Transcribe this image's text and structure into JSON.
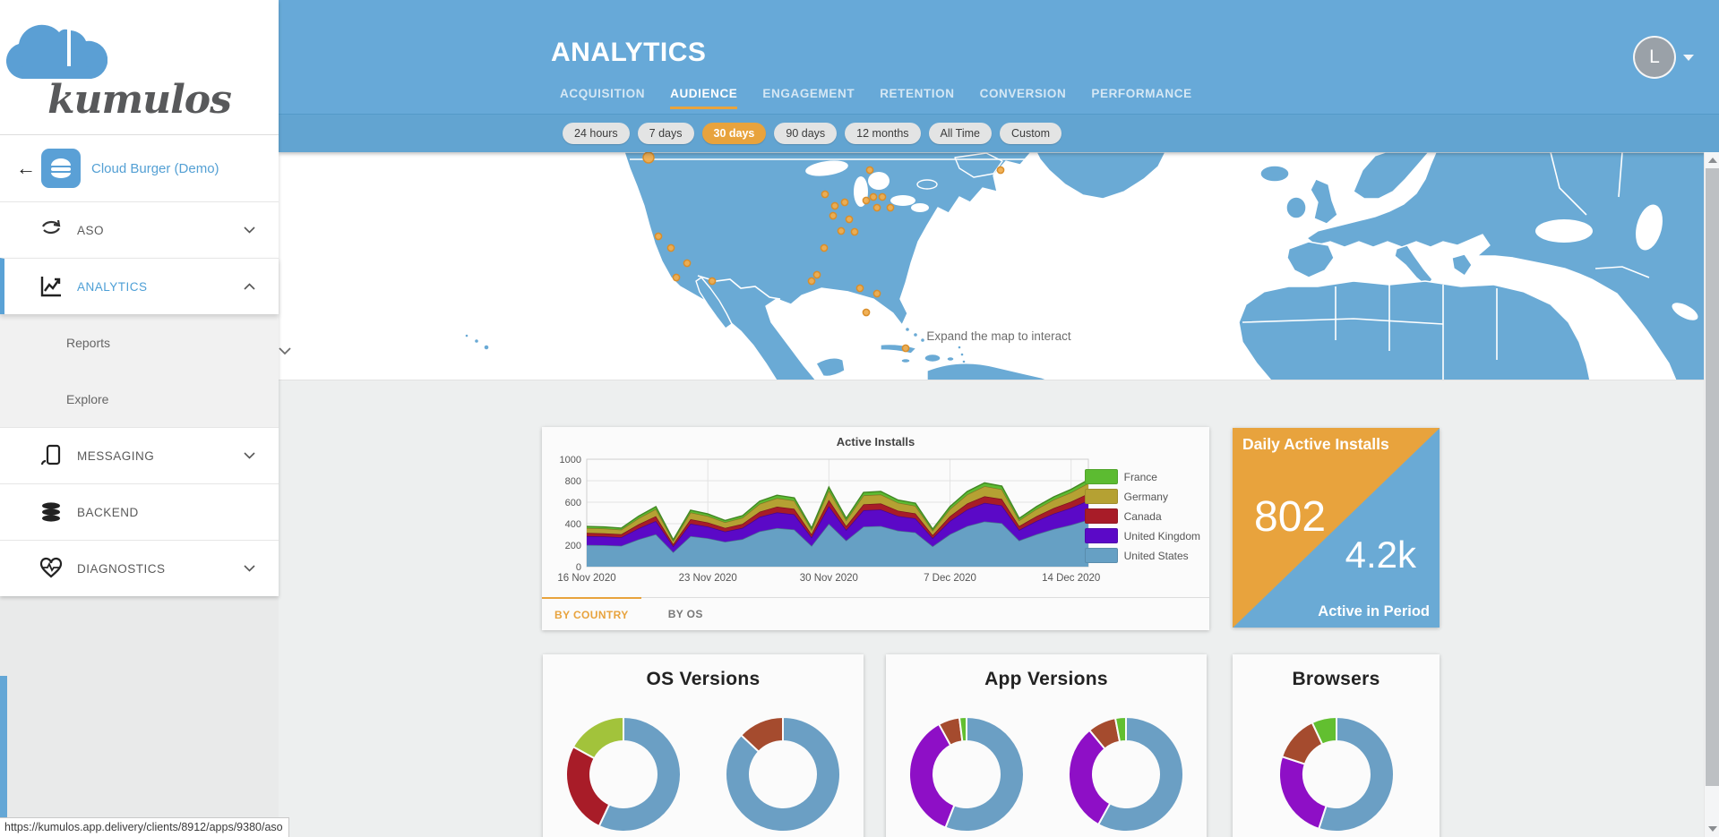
{
  "sidebar": {
    "logo_text": "kumulos",
    "back_glyph": "←",
    "app_name": "Cloud Burger (Demo)",
    "items": [
      {
        "label": "ASO"
      },
      {
        "label": "ANALYTICS"
      },
      {
        "label": "Reports"
      },
      {
        "label": "Explore"
      },
      {
        "label": "MESSAGING"
      },
      {
        "label": "BACKEND"
      },
      {
        "label": "DIAGNOSTICS"
      }
    ]
  },
  "header": {
    "title": "ANALYTICS",
    "tabs": [
      {
        "label": "ACQUISITION"
      },
      {
        "label": "AUDIENCE"
      },
      {
        "label": "ENGAGEMENT"
      },
      {
        "label": "RETENTION"
      },
      {
        "label": "CONVERSION"
      },
      {
        "label": "PERFORMANCE"
      }
    ],
    "active_tab": "AUDIENCE",
    "avatar_initial": "L"
  },
  "filters": {
    "ranges": [
      {
        "label": "24 hours"
      },
      {
        "label": "7 days"
      },
      {
        "label": "30 days"
      },
      {
        "label": "90 days"
      },
      {
        "label": "12 months"
      },
      {
        "label": "All Time"
      },
      {
        "label": "Custom"
      }
    ],
    "active": "30 days"
  },
  "map": {
    "hint": "Expand the map to interact",
    "dot_color": "#f0ad4e",
    "dot_stroke": "#d98e2b",
    "dots": [
      [
        413,
        6
      ],
      [
        424,
        94
      ],
      [
        438,
        107
      ],
      [
        456,
        124
      ],
      [
        444,
        140
      ],
      [
        484,
        144
      ],
      [
        595,
        144
      ],
      [
        601,
        137
      ],
      [
        610,
        47
      ],
      [
        621,
        60
      ],
      [
        632,
        56
      ],
      [
        619,
        71
      ],
      [
        637,
        75
      ],
      [
        628,
        88
      ],
      [
        643,
        89
      ],
      [
        609,
        107
      ],
      [
        656,
        54
      ],
      [
        660,
        20
      ],
      [
        664,
        50
      ],
      [
        674,
        50
      ],
      [
        668,
        62
      ],
      [
        683,
        62
      ],
      [
        649,
        152
      ],
      [
        656,
        179
      ],
      [
        668,
        158
      ],
      [
        700,
        219
      ],
      [
        806,
        20
      ]
    ]
  },
  "daily_card": {
    "title": "Daily Active Installs",
    "daily_value": "802",
    "period_value": "4.2k",
    "period_label": "Active in Period",
    "accent_orange": "#e8a33d",
    "accent_blue": "#6aaad5"
  },
  "installs_tabs": {
    "by_country": "BY COUNTRY",
    "by_os": "BY OS"
  },
  "status_url": "https://kumulos.app.delivery/clients/8912/apps/9380/aso",
  "chart_data": [
    {
      "type": "area",
      "title": "Active Installs",
      "stacked": true,
      "ylim": [
        0,
        1000
      ],
      "yticks": [
        0,
        200,
        400,
        600,
        800,
        1000
      ],
      "x_ticks": [
        {
          "index": 0,
          "label": "16 Nov 2020"
        },
        {
          "index": 7,
          "label": "23 Nov 2020"
        },
        {
          "index": 14,
          "label": "30 Nov 2020"
        },
        {
          "index": 21,
          "label": "7 Dec 2020"
        },
        {
          "index": 28,
          "label": "14 Dec 2020"
        }
      ],
      "legend_position": "right",
      "series": [
        {
          "name": "United States",
          "color": "#66a0c4",
          "values": [
            202,
            200,
            194,
            254,
            302,
            135,
            284,
            265,
            232,
            256,
            329,
            359,
            346,
            194,
            400,
            243,
            373,
            378,
            335,
            319,
            189,
            302,
            378,
            421,
            405,
            243,
            302,
            351,
            389,
            437
          ]
        },
        {
          "name": "United Kingdom",
          "color": "#5b09c7",
          "values": [
            82,
            81,
            79,
            103,
            123,
            55,
            116,
            108,
            95,
            104,
            134,
            146,
            141,
            79,
            163,
            99,
            152,
            154,
            136,
            130,
            77,
            123,
            154,
            172,
            165,
            99,
            123,
            143,
            158,
            178
          ]
        },
        {
          "name": "Canada",
          "color": "#a81c28",
          "values": [
            30,
            30,
            29,
            38,
            45,
            20,
            42,
            39,
            34,
            38,
            49,
            53,
            51,
            29,
            59,
            36,
            55,
            56,
            50,
            47,
            28,
            45,
            56,
            62,
            60,
            36,
            45,
            52,
            58,
            65
          ]
        },
        {
          "name": "Germany",
          "color": "#b5a133",
          "values": [
            45,
            44,
            43,
            56,
            67,
            30,
            63,
            59,
            52,
            57,
            73,
            80,
            77,
            43,
            89,
            54,
            83,
            84,
            74,
            71,
            42,
            67,
            84,
            94,
            90,
            54,
            67,
            78,
            86,
            97
          ]
        },
        {
          "name": "France",
          "color": "#5cbb31",
          "values": [
            15,
            15,
            14,
            19,
            22,
            10,
            21,
            20,
            17,
            19,
            24,
            27,
            26,
            14,
            30,
            18,
            28,
            28,
            25,
            24,
            14,
            22,
            28,
            31,
            30,
            18,
            22,
            26,
            29,
            32
          ]
        }
      ]
    },
    {
      "type": "pie",
      "title": "OS Versions",
      "donuts": [
        {
          "segments": [
            {
              "color_name": "steel-blue",
              "color": "#6b9fc4",
              "value": 57
            },
            {
              "color_name": "crimson",
              "color": "#a81c28",
              "value": 26
            },
            {
              "color_name": "yellow-green",
              "color": "#a2c33b",
              "value": 17
            }
          ]
        },
        {
          "segments": [
            {
              "color_name": "steel-blue",
              "color": "#6b9fc4",
              "value": 87
            },
            {
              "color_name": "rust",
              "color": "#a54b2e",
              "value": 13
            }
          ]
        }
      ]
    },
    {
      "type": "pie",
      "title": "App Versions",
      "donuts": [
        {
          "segments": [
            {
              "color_name": "steel-blue",
              "color": "#6b9fc4",
              "value": 56
            },
            {
              "color_name": "purple",
              "color": "#8e0fc6",
              "value": 36
            },
            {
              "color_name": "rust",
              "color": "#a54b2e",
              "value": 6
            },
            {
              "color_name": "green",
              "color": "#62bf30",
              "value": 2
            }
          ]
        },
        {
          "segments": [
            {
              "color_name": "steel-blue",
              "color": "#6b9fc4",
              "value": 58
            },
            {
              "color_name": "purple",
              "color": "#8e0fc6",
              "value": 31
            },
            {
              "color_name": "rust",
              "color": "#a54b2e",
              "value": 8
            },
            {
              "color_name": "green",
              "color": "#62bf30",
              "value": 3
            }
          ]
        }
      ]
    },
    {
      "type": "pie",
      "title": "Browsers",
      "donuts": [
        {
          "segments": [
            {
              "color_name": "steel-blue",
              "color": "#6b9fc4",
              "value": 55
            },
            {
              "color_name": "purple",
              "color": "#8e0fc6",
              "value": 25
            },
            {
              "color_name": "rust",
              "color": "#a54b2e",
              "value": 13
            },
            {
              "color_name": "green",
              "color": "#62bf30",
              "value": 7
            }
          ]
        }
      ]
    }
  ]
}
